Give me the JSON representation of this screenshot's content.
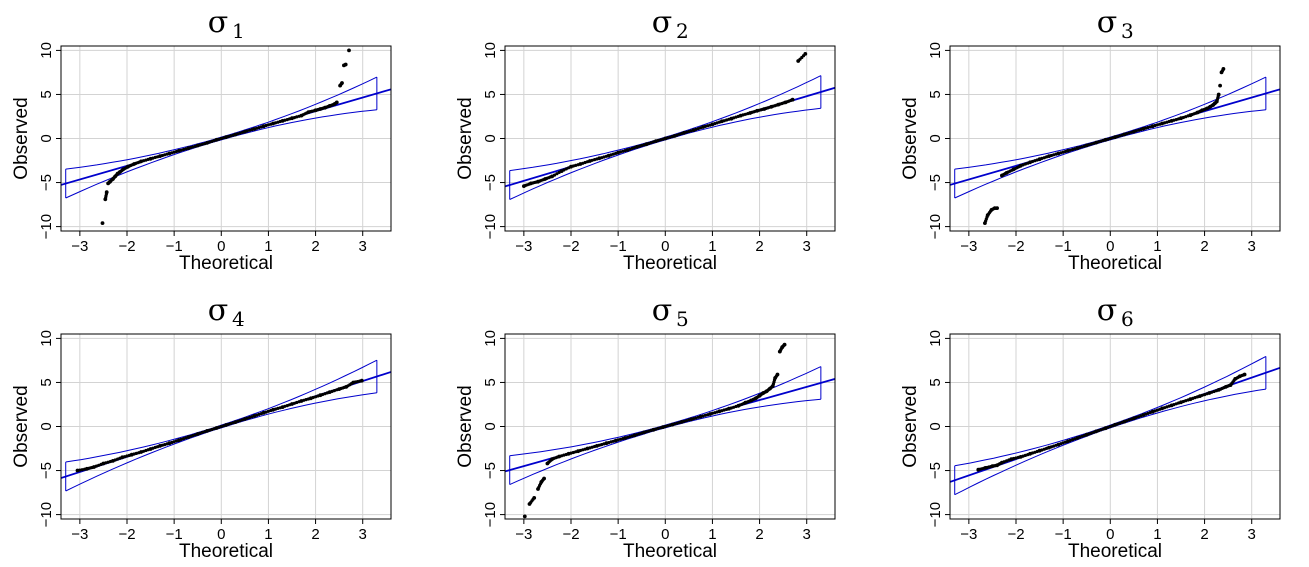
{
  "figure": {
    "layout": "2x3 grid"
  },
  "colors": {
    "reference_line": "#0000cc",
    "envelope": "#0000cc",
    "points": "#000000",
    "grid": "#d3d3d3"
  },
  "chart_data": [
    {
      "type": "scatter",
      "title": "σ",
      "title_subscript": "1",
      "xlabel": "Theoretical",
      "ylabel": "Observed",
      "xlim": [
        -3.4,
        3.6
      ],
      "ylim": [
        -10.5,
        10.5
      ],
      "xticks": [
        -3,
        -2,
        -1,
        0,
        1,
        2,
        3
      ],
      "yticks": [
        -10,
        -5,
        0,
        5,
        10
      ],
      "grid": true,
      "reference_line": {
        "slope": 1.55,
        "intercept": 0.0
      },
      "envelope_tops": [
        4.3,
        4.9
      ],
      "points": [
        [
          -2.58,
          -10.8
        ],
        [
          -2.52,
          -9.6
        ],
        [
          -2.46,
          -6.9
        ],
        [
          -2.43,
          -6.1
        ],
        [
          -2.4,
          -5.1
        ],
        [
          -2.36,
          -4.9
        ],
        [
          -2.3,
          -4.6
        ],
        [
          -2.25,
          -4.3
        ],
        [
          -2.2,
          -4.0
        ],
        [
          -2.15,
          -3.8
        ],
        [
          -2.08,
          -3.5
        ],
        [
          -1.98,
          -3.2
        ],
        [
          -1.85,
          -2.9
        ],
        [
          -1.7,
          -2.6
        ],
        [
          -1.5,
          -2.3
        ],
        [
          -1.3,
          -2.0
        ],
        [
          -1.1,
          -1.7
        ],
        [
          -0.9,
          -1.4
        ],
        [
          -0.7,
          -1.1
        ],
        [
          -0.5,
          -0.8
        ],
        [
          -0.3,
          -0.5
        ],
        [
          -0.1,
          -0.15
        ],
        [
          0.1,
          0.15
        ],
        [
          0.3,
          0.45
        ],
        [
          0.5,
          0.78
        ],
        [
          0.7,
          1.08
        ],
        [
          0.9,
          1.4
        ],
        [
          1.1,
          1.7
        ],
        [
          1.3,
          2.0
        ],
        [
          1.5,
          2.3
        ],
        [
          1.7,
          2.6
        ],
        [
          1.85,
          3.0
        ],
        [
          2.0,
          3.2
        ],
        [
          2.1,
          3.35
        ],
        [
          2.2,
          3.5
        ],
        [
          2.3,
          3.7
        ],
        [
          2.4,
          3.9
        ],
        [
          2.45,
          4.1
        ],
        [
          2.52,
          6.0
        ],
        [
          2.56,
          6.3
        ],
        [
          2.6,
          8.3
        ],
        [
          2.64,
          8.4
        ],
        [
          2.71,
          10.0
        ]
      ]
    },
    {
      "type": "scatter",
      "title": "σ",
      "title_subscript": "2",
      "xlabel": "Theoretical",
      "ylabel": "Observed",
      "xlim": [
        -3.4,
        3.6
      ],
      "ylim": [
        -10.5,
        10.5
      ],
      "xticks": [
        -3,
        -2,
        -1,
        0,
        1,
        2,
        3
      ],
      "yticks": [
        -10,
        -5,
        0,
        5,
        10
      ],
      "grid": true,
      "reference_line": {
        "slope": 1.6,
        "intercept": 0.0
      },
      "envelope_tops": [
        4.3,
        5.0
      ],
      "points": [
        [
          -3.0,
          -5.4
        ],
        [
          -2.85,
          -5.1
        ],
        [
          -2.7,
          -4.9
        ],
        [
          -2.55,
          -4.6
        ],
        [
          -2.4,
          -4.3
        ],
        [
          -2.2,
          -3.7
        ],
        [
          -2.0,
          -3.2
        ],
        [
          -1.8,
          -2.9
        ],
        [
          -1.6,
          -2.55
        ],
        [
          -1.4,
          -2.25
        ],
        [
          -1.2,
          -1.95
        ],
        [
          -1.0,
          -1.6
        ],
        [
          -0.8,
          -1.3
        ],
        [
          -0.6,
          -0.95
        ],
        [
          -0.4,
          -0.65
        ],
        [
          -0.2,
          -0.3
        ],
        [
          0.0,
          0.0
        ],
        [
          0.2,
          0.3
        ],
        [
          0.4,
          0.65
        ],
        [
          0.6,
          0.95
        ],
        [
          0.8,
          1.3
        ],
        [
          1.0,
          1.6
        ],
        [
          1.2,
          1.95
        ],
        [
          1.4,
          2.25
        ],
        [
          1.6,
          2.6
        ],
        [
          1.8,
          2.9
        ],
        [
          1.95,
          3.15
        ],
        [
          2.1,
          3.35
        ],
        [
          2.25,
          3.6
        ],
        [
          2.4,
          3.85
        ],
        [
          2.55,
          4.1
        ],
        [
          2.7,
          4.4
        ],
        [
          2.82,
          8.8
        ],
        [
          2.97,
          9.6
        ]
      ]
    },
    {
      "type": "scatter",
      "title": "σ",
      "title_subscript": "3",
      "xlabel": "Theoretical",
      "ylabel": "Observed",
      "xlim": [
        -3.4,
        3.6
      ],
      "ylim": [
        -10.5,
        10.5
      ],
      "xticks": [
        -3,
        -2,
        -1,
        0,
        1,
        2,
        3
      ],
      "yticks": [
        -10,
        -5,
        0,
        5,
        10
      ],
      "grid": true,
      "reference_line": {
        "slope": 1.55,
        "intercept": 0.0
      },
      "envelope_tops": [
        4.0,
        4.9
      ],
      "points": [
        [
          -2.66,
          -9.6
        ],
        [
          -2.6,
          -8.7
        ],
        [
          -2.52,
          -8.1
        ],
        [
          -2.45,
          -7.9
        ],
        [
          -2.4,
          -7.9
        ],
        [
          -2.3,
          -4.2
        ],
        [
          -2.2,
          -3.9
        ],
        [
          -2.05,
          -3.5
        ],
        [
          -1.9,
          -3.1
        ],
        [
          -1.7,
          -2.7
        ],
        [
          -1.5,
          -2.35
        ],
        [
          -1.3,
          -2.0
        ],
        [
          -1.1,
          -1.7
        ],
        [
          -0.9,
          -1.4
        ],
        [
          -0.7,
          -1.1
        ],
        [
          -0.5,
          -0.78
        ],
        [
          -0.3,
          -0.47
        ],
        [
          -0.1,
          -0.15
        ],
        [
          0.1,
          0.15
        ],
        [
          0.3,
          0.47
        ],
        [
          0.5,
          0.78
        ],
        [
          0.7,
          1.1
        ],
        [
          0.9,
          1.4
        ],
        [
          1.1,
          1.7
        ],
        [
          1.3,
          2.0
        ],
        [
          1.5,
          2.3
        ],
        [
          1.7,
          2.65
        ],
        [
          1.85,
          2.95
        ],
        [
          1.95,
          3.2
        ],
        [
          2.05,
          3.4
        ],
        [
          2.12,
          3.6
        ],
        [
          2.18,
          3.8
        ],
        [
          2.22,
          4.0
        ],
        [
          2.26,
          4.2
        ],
        [
          2.3,
          5.0
        ],
        [
          2.33,
          6.0
        ],
        [
          2.36,
          7.5
        ],
        [
          2.4,
          7.9
        ]
      ]
    },
    {
      "type": "scatter",
      "title": "σ",
      "title_subscript": "4",
      "xlabel": "Theoretical",
      "ylabel": "Observed",
      "xlim": [
        -3.4,
        3.6
      ],
      "ylim": [
        -10.5,
        10.5
      ],
      "xticks": [
        -3,
        -2,
        -1,
        0,
        1,
        2,
        3
      ],
      "yticks": [
        -10,
        -5,
        0,
        5,
        10
      ],
      "grid": true,
      "reference_line": {
        "slope": 1.72,
        "intercept": 0.0
      },
      "envelope_tops": [
        4.9,
        5.7
      ],
      "points": [
        [
          -3.05,
          -5.0
        ],
        [
          -2.85,
          -4.8
        ],
        [
          -2.7,
          -4.6
        ],
        [
          -2.5,
          -4.2
        ],
        [
          -2.3,
          -3.9
        ],
        [
          -2.1,
          -3.5
        ],
        [
          -1.9,
          -3.2
        ],
        [
          -1.7,
          -2.9
        ],
        [
          -1.5,
          -2.55
        ],
        [
          -1.3,
          -2.2
        ],
        [
          -1.1,
          -1.9
        ],
        [
          -0.9,
          -1.55
        ],
        [
          -0.7,
          -1.2
        ],
        [
          -0.5,
          -0.85
        ],
        [
          -0.3,
          -0.5
        ],
        [
          -0.1,
          -0.17
        ],
        [
          0.1,
          0.17
        ],
        [
          0.3,
          0.5
        ],
        [
          0.5,
          0.85
        ],
        [
          0.7,
          1.2
        ],
        [
          0.9,
          1.55
        ],
        [
          1.1,
          1.9
        ],
        [
          1.3,
          2.2
        ],
        [
          1.5,
          2.55
        ],
        [
          1.7,
          2.9
        ],
        [
          1.9,
          3.2
        ],
        [
          2.1,
          3.55
        ],
        [
          2.3,
          3.9
        ],
        [
          2.5,
          4.25
        ],
        [
          2.65,
          4.5
        ],
        [
          2.8,
          5.0
        ],
        [
          2.98,
          5.2
        ]
      ]
    },
    {
      "type": "scatter",
      "title": "σ",
      "title_subscript": "5",
      "xlabel": "Theoretical",
      "ylabel": "Observed",
      "xlim": [
        -3.4,
        3.6
      ],
      "ylim": [
        -10.5,
        10.5
      ],
      "xticks": [
        -3,
        -2,
        -1,
        0,
        1,
        2,
        3
      ],
      "yticks": [
        -10,
        -5,
        0,
        5,
        10
      ],
      "grid": true,
      "reference_line": {
        "slope": 1.5,
        "intercept": 0.0
      },
      "envelope_tops": [
        4.0,
        4.8
      ],
      "points": [
        [
          -2.98,
          -10.2
        ],
        [
          -2.88,
          -8.8
        ],
        [
          -2.78,
          -8.1
        ],
        [
          -2.7,
          -7.1
        ],
        [
          -2.63,
          -6.3
        ],
        [
          -2.57,
          -5.9
        ],
        [
          -2.5,
          -4.2
        ],
        [
          -2.4,
          -3.7
        ],
        [
          -2.25,
          -3.4
        ],
        [
          -2.05,
          -3.1
        ],
        [
          -1.85,
          -2.8
        ],
        [
          -1.65,
          -2.5
        ],
        [
          -1.45,
          -2.2
        ],
        [
          -1.25,
          -1.9
        ],
        [
          -1.05,
          -1.6
        ],
        [
          -0.85,
          -1.3
        ],
        [
          -0.65,
          -1.0
        ],
        [
          -0.45,
          -0.67
        ],
        [
          -0.25,
          -0.37
        ],
        [
          -0.05,
          -0.07
        ],
        [
          0.15,
          0.22
        ],
        [
          0.35,
          0.52
        ],
        [
          0.55,
          0.82
        ],
        [
          0.75,
          1.12
        ],
        [
          0.95,
          1.42
        ],
        [
          1.15,
          1.72
        ],
        [
          1.35,
          2.02
        ],
        [
          1.55,
          2.35
        ],
        [
          1.7,
          2.7
        ],
        [
          1.82,
          2.95
        ],
        [
          1.92,
          3.2
        ],
        [
          2.0,
          3.5
        ],
        [
          2.08,
          3.8
        ],
        [
          2.15,
          4.0
        ],
        [
          2.22,
          4.3
        ],
        [
          2.28,
          4.6
        ],
        [
          2.33,
          5.5
        ],
        [
          2.38,
          5.9
        ],
        [
          2.43,
          8.5
        ],
        [
          2.48,
          9.0
        ],
        [
          2.53,
          9.3
        ]
      ]
    },
    {
      "type": "scatter",
      "title": "σ",
      "title_subscript": "6",
      "xlabel": "Theoretical",
      "ylabel": "Observed",
      "xlim": [
        -3.4,
        3.6
      ],
      "ylim": [
        -10.5,
        10.5
      ],
      "xticks": [
        -3,
        -2,
        -1,
        0,
        1,
        2,
        3
      ],
      "yticks": [
        -10,
        -5,
        0,
        5,
        10
      ],
      "grid": true,
      "reference_line": {
        "slope": 1.85,
        "intercept": 0.0
      },
      "envelope_tops": [
        5.1,
        6.3
      ],
      "points": [
        [
          -2.8,
          -4.9
        ],
        [
          -2.65,
          -4.7
        ],
        [
          -2.5,
          -4.5
        ],
        [
          -2.4,
          -4.4
        ],
        [
          -2.3,
          -4.1
        ],
        [
          -2.1,
          -3.7
        ],
        [
          -1.9,
          -3.45
        ],
        [
          -1.7,
          -3.1
        ],
        [
          -1.5,
          -2.75
        ],
        [
          -1.3,
          -2.4
        ],
        [
          -1.1,
          -2.05
        ],
        [
          -0.9,
          -1.68
        ],
        [
          -0.7,
          -1.3
        ],
        [
          -0.5,
          -0.93
        ],
        [
          -0.3,
          -0.56
        ],
        [
          -0.1,
          -0.19
        ],
        [
          0.1,
          0.19
        ],
        [
          0.3,
          0.56
        ],
        [
          0.5,
          0.93
        ],
        [
          0.7,
          1.3
        ],
        [
          0.9,
          1.68
        ],
        [
          1.1,
          2.05
        ],
        [
          1.3,
          2.4
        ],
        [
          1.5,
          2.75
        ],
        [
          1.7,
          3.1
        ],
        [
          1.9,
          3.45
        ],
        [
          2.1,
          3.8
        ],
        [
          2.3,
          4.15
        ],
        [
          2.45,
          4.5
        ],
        [
          2.55,
          4.7
        ],
        [
          2.65,
          5.4
        ],
        [
          2.75,
          5.7
        ],
        [
          2.85,
          5.9
        ]
      ]
    }
  ]
}
